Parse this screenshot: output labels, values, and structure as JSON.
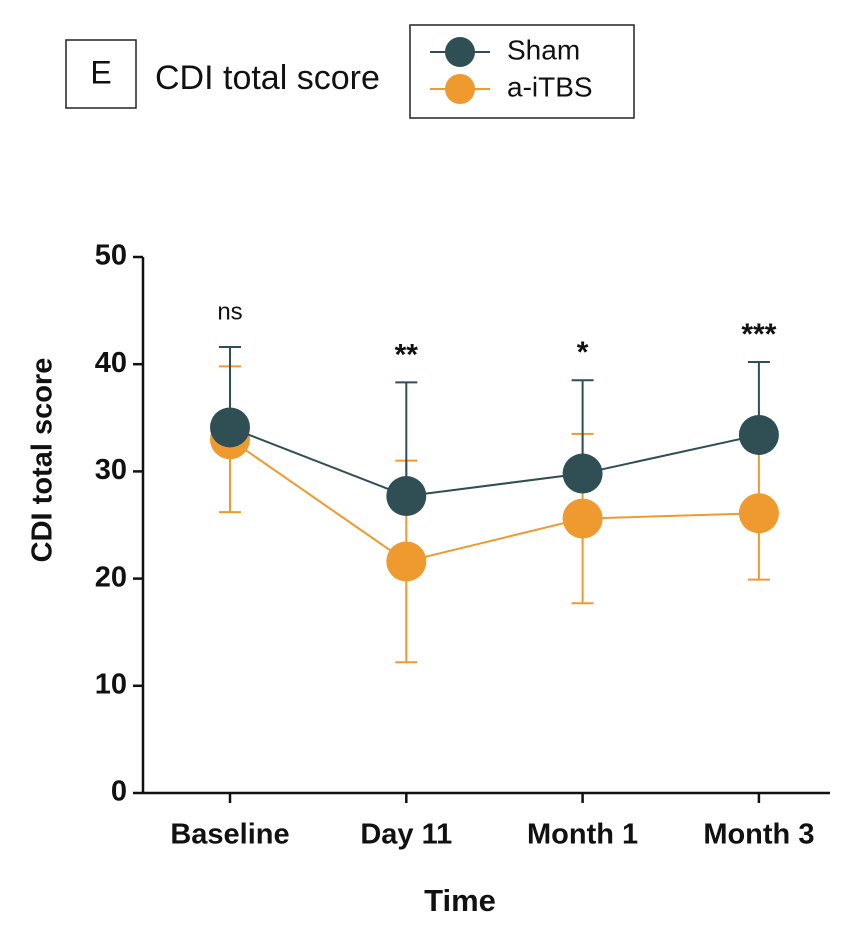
{
  "chart_data": {
    "type": "line",
    "panel_label": "E",
    "title": "CDI total score",
    "x_label": "Time",
    "y_label": "CDI  total score",
    "categories": [
      "Baseline",
      "Day 11",
      "Month 1",
      "Month 3"
    ],
    "series": [
      {
        "name": "Sham",
        "color": "#2f4f55",
        "values": [
          34.1,
          27.7,
          29.8,
          33.4
        ],
        "errors": [
          7.5,
          10.6,
          8.7,
          6.8
        ],
        "error_direction": "up"
      },
      {
        "name": "a-iTBS",
        "color": "#ef9a2e",
        "values": [
          33.0,
          21.6,
          25.6,
          26.1
        ],
        "errors": [
          6.8,
          9.4,
          7.9,
          6.2
        ],
        "error_direction": "both"
      }
    ],
    "annotations": [
      "ns",
      "**",
      "*",
      "***"
    ],
    "ylim": [
      0,
      50
    ],
    "yticks": [
      0,
      10,
      20,
      30,
      40,
      50
    ],
    "legend": "top"
  }
}
